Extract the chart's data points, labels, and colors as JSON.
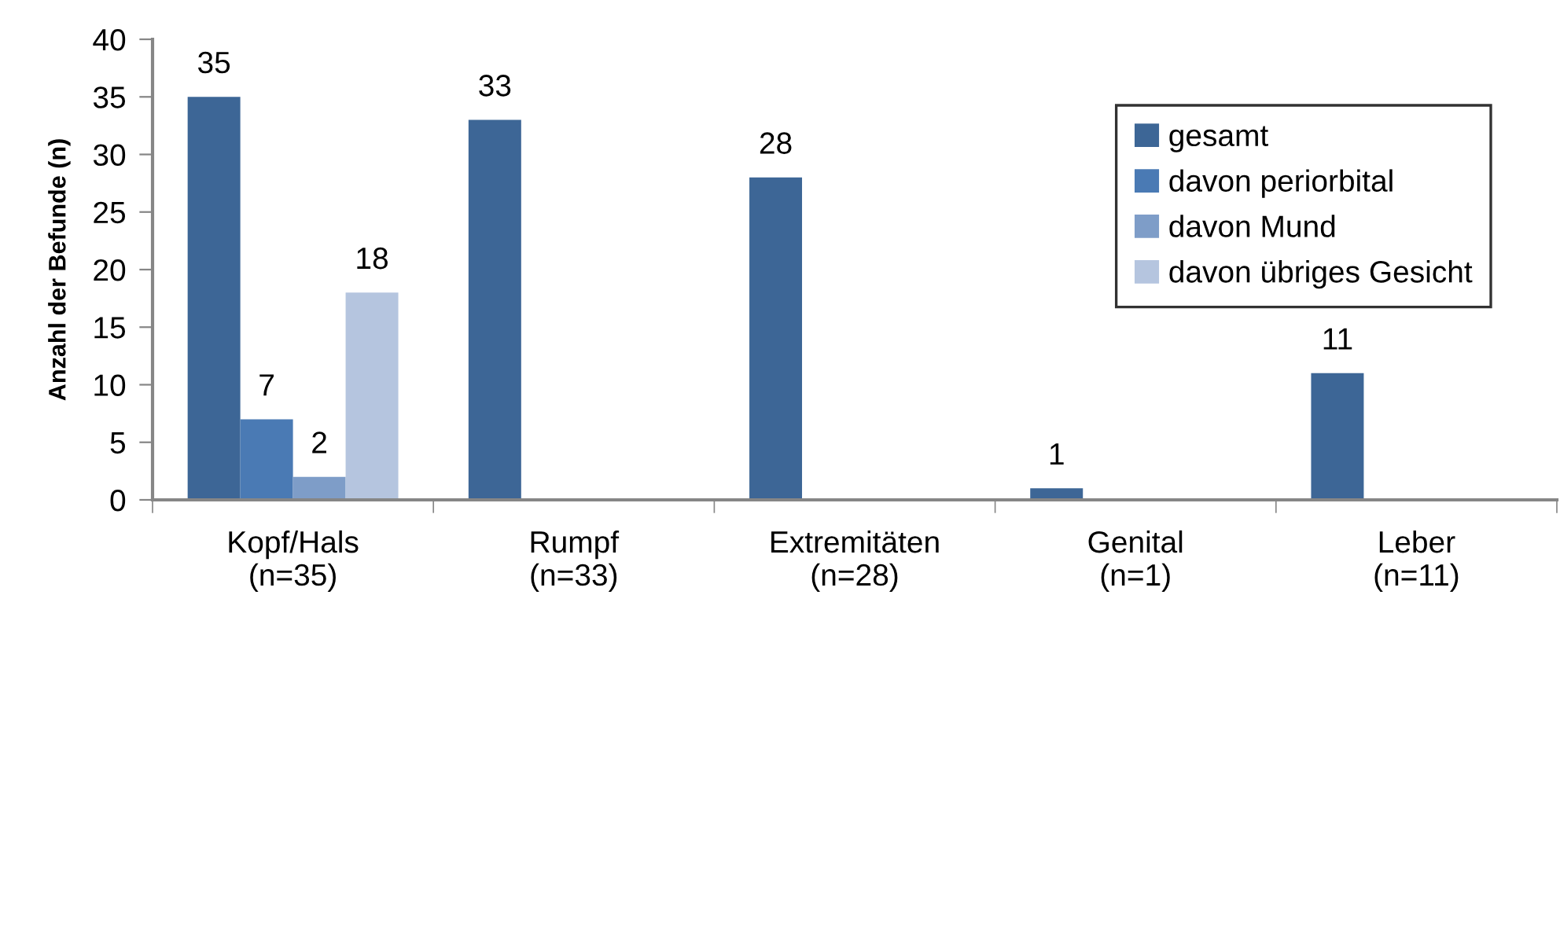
{
  "chart_data": {
    "type": "bar",
    "ylabel": "Anzahl der Befunde (n)",
    "categories": [
      "Kopf/Hals\n(n=35)",
      "Rumpf\n(n=33)",
      "Extremitäten\n(n=28)",
      "Genital\n(n=1)",
      "Leber\n(n=11)"
    ],
    "series": [
      {
        "name": "gesamt",
        "color": "#3d6696",
        "values": [
          35,
          33,
          28,
          1,
          11
        ]
      },
      {
        "name": "davon periorbital",
        "color": "#4a7ab4",
        "values": [
          7,
          null,
          null,
          null,
          null
        ]
      },
      {
        "name": "davon Mund",
        "color": "#7e9dc8",
        "values": [
          2,
          null,
          null,
          null,
          null
        ]
      },
      {
        "name": "davon übriges Gesicht",
        "color": "#b5c5df",
        "values": [
          18,
          null,
          null,
          null,
          null
        ]
      }
    ],
    "ylim": [
      0,
      40
    ],
    "yticks": [
      0,
      5,
      10,
      15,
      20,
      25,
      30,
      35,
      40
    ],
    "data_labels": true,
    "legend": "top right",
    "grid": false
  }
}
